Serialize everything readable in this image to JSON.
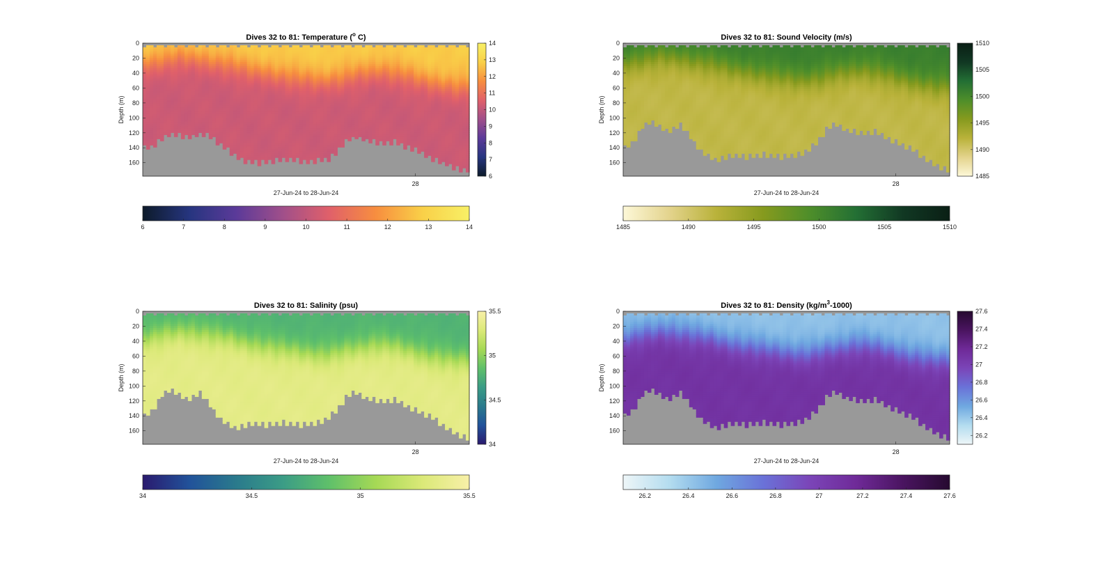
{
  "figure_title": "",
  "chart_data": [
    {
      "type": "heatmap",
      "title": "Dives 32 to 81: Temperature (",
      "title_sup": "o",
      "title_suffix": " C)",
      "xlabel": "27-Jun-24 to 28-Jun-24",
      "ylabel": "Depth (m)",
      "x_ticks": [
        "28"
      ],
      "x_tick_pos": [
        0.835
      ],
      "y_ticks": [
        "0",
        "20",
        "40",
        "60",
        "80",
        "100",
        "120",
        "140",
        "160"
      ],
      "ylim": [
        0,
        178
      ],
      "clim": [
        6,
        14
      ],
      "right_colorbar_ticks": [
        "6",
        "7",
        "8",
        "9",
        "10",
        "11",
        "12",
        "13",
        "14"
      ],
      "horizontal_colorbar_ticks": [
        "6",
        "7",
        "8",
        "9",
        "10",
        "11",
        "12",
        "13",
        "14"
      ],
      "colormap": [
        "#0d1b2a",
        "#26357f",
        "#5b3a99",
        "#a04f8a",
        "#e0606a",
        "#f78e3f",
        "#f9d048",
        "#f8f066"
      ],
      "surface_value": 12.8,
      "deep_value": 10.2,
      "thermocline_depth": [
        28,
        26,
        22,
        20,
        18,
        20,
        22,
        24,
        26,
        28,
        32,
        36,
        38,
        40,
        42,
        44,
        46,
        48,
        50,
        48,
        46,
        42,
        40,
        38,
        36,
        38,
        40,
        44,
        48,
        52,
        54,
        56,
        58,
        56
      ],
      "seafloor_depth": [
        140,
        140,
        128,
        122,
        124,
        126,
        122,
        124,
        132,
        142,
        152,
        158,
        160,
        160,
        158,
        156,
        156,
        158,
        158,
        156,
        154,
        142,
        128,
        126,
        130,
        132,
        134,
        132,
        138,
        142,
        148,
        154,
        160,
        164,
        168,
        170
      ]
    },
    {
      "type": "heatmap",
      "title": "Dives 32 to 81: Sound Velocity (m/s)",
      "title_sup": "",
      "title_suffix": "",
      "xlabel": "27-Jun-24 to 28-Jun-24",
      "ylabel": "Depth (m)",
      "x_ticks": [
        "28"
      ],
      "x_tick_pos": [
        0.835
      ],
      "y_ticks": [
        "0",
        "20",
        "40",
        "60",
        "80",
        "100",
        "120",
        "140",
        "160"
      ],
      "ylim": [
        0,
        178
      ],
      "clim": [
        1485,
        1510
      ],
      "right_colorbar_ticks": [
        "1485",
        "1490",
        "1495",
        "1500",
        "1505",
        "1510"
      ],
      "horizontal_colorbar_ticks": [
        "1485",
        "1490",
        "1495",
        "1500",
        "1505",
        "1510"
      ],
      "colormap": [
        "#fdf8d8",
        "#e3d38c",
        "#b9b23a",
        "#869a1e",
        "#4e8e2a",
        "#236f34",
        "#113823",
        "#0a1f15"
      ],
      "surface_value": 1501,
      "deep_value": 1491.5,
      "thermocline_depth": [
        28,
        26,
        22,
        20,
        18,
        20,
        22,
        24,
        26,
        28,
        32,
        36,
        38,
        40,
        42,
        44,
        46,
        48,
        50,
        48,
        46,
        42,
        40,
        38,
        36,
        38,
        40,
        44,
        48,
        52,
        54,
        56,
        58,
        56
      ],
      "seafloor_depth": [
        140,
        134,
        112,
        104,
        112,
        118,
        108,
        120,
        140,
        150,
        156,
        152,
        150,
        152,
        150,
        148,
        150,
        152,
        150,
        148,
        140,
        128,
        112,
        108,
        116,
        118,
        120,
        118,
        124,
        130,
        136,
        142,
        150,
        160,
        166,
        170
      ]
    },
    {
      "type": "heatmap",
      "title": "Dives 32 to 81: Salinity (psu)",
      "title_sup": "",
      "title_suffix": "",
      "xlabel": "27-Jun-24 to 28-Jun-24",
      "ylabel": "Depth (m)",
      "x_ticks": [
        "28"
      ],
      "x_tick_pos": [
        0.835
      ],
      "y_ticks": [
        "0",
        "20",
        "40",
        "60",
        "80",
        "100",
        "120",
        "140",
        "160"
      ],
      "ylim": [
        0,
        178
      ],
      "clim": [
        34,
        35.5
      ],
      "right_colorbar_ticks": [
        "34",
        "34.5",
        "35",
        "35.5"
      ],
      "horizontal_colorbar_ticks": [
        "34",
        "34.5",
        "35",
        "35.5"
      ],
      "colormap": [
        "#2a1a6e",
        "#21529a",
        "#2a7a8c",
        "#3b9c86",
        "#5fc06a",
        "#a6d955",
        "#dbe978",
        "#f8f0a8"
      ],
      "surface_value": 34.78,
      "deep_value": 35.35,
      "thermocline_depth": [
        36,
        34,
        30,
        28,
        26,
        28,
        30,
        32,
        34,
        36,
        40,
        44,
        46,
        48,
        50,
        52,
        54,
        56,
        58,
        56,
        54,
        50,
        48,
        46,
        44,
        46,
        48,
        52,
        56,
        60,
        62,
        64,
        66,
        64
      ],
      "seafloor_depth": [
        140,
        134,
        112,
        104,
        112,
        118,
        108,
        120,
        140,
        150,
        156,
        152,
        150,
        152,
        150,
        148,
        150,
        152,
        150,
        148,
        140,
        128,
        112,
        108,
        116,
        118,
        120,
        118,
        124,
        130,
        136,
        142,
        150,
        160,
        166,
        170
      ]
    },
    {
      "type": "heatmap",
      "title": "Dives 32 to 81: Density (kg/m",
      "title_sup": "3",
      "title_suffix": "-1000)",
      "xlabel": "27-Jun-24 to 28-Jun-24",
      "ylabel": "Depth (m)",
      "x_ticks": [
        "28"
      ],
      "x_tick_pos": [
        0.835
      ],
      "y_ticks": [
        "0",
        "20",
        "40",
        "60",
        "80",
        "100",
        "120",
        "140",
        "160"
      ],
      "ylim": [
        0,
        178
      ],
      "clim": [
        26.1,
        27.6
      ],
      "right_colorbar_ticks": [
        "26.2",
        "26.4",
        "26.6",
        "26.8",
        "27",
        "27.2",
        "27.4",
        "27.6"
      ],
      "horizontal_colorbar_ticks": [
        "26.2",
        "26.4",
        "26.6",
        "26.8",
        "27",
        "27.2",
        "27.4",
        "27.6"
      ],
      "colormap": [
        "#eef6f8",
        "#b3dcef",
        "#6fa8e0",
        "#6a72d8",
        "#7b45b8",
        "#6f2a98",
        "#4a1460",
        "#260a30"
      ],
      "surface_value": 26.42,
      "deep_value": 27.1,
      "thermocline_depth": [
        36,
        34,
        30,
        28,
        26,
        28,
        30,
        32,
        34,
        36,
        40,
        44,
        46,
        48,
        50,
        52,
        54,
        56,
        58,
        56,
        54,
        50,
        48,
        46,
        44,
        46,
        48,
        52,
        56,
        60,
        62,
        64,
        66,
        64
      ],
      "seafloor_depth": [
        140,
        134,
        112,
        104,
        112,
        118,
        108,
        120,
        140,
        150,
        156,
        152,
        150,
        152,
        150,
        148,
        150,
        152,
        150,
        148,
        140,
        128,
        112,
        108,
        116,
        118,
        120,
        118,
        124,
        130,
        136,
        142,
        150,
        160,
        166,
        170
      ]
    }
  ]
}
